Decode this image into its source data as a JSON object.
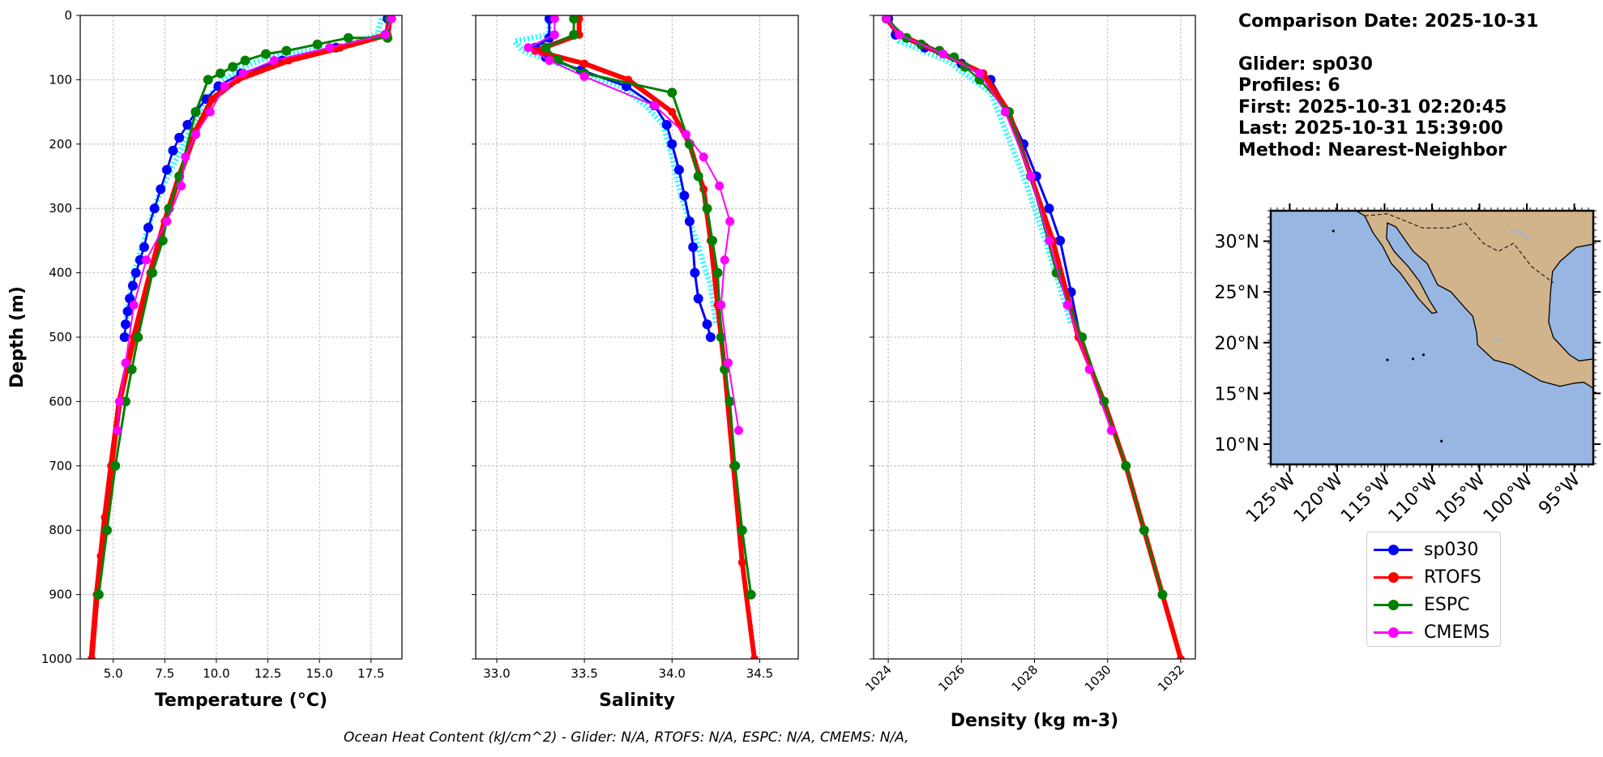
{
  "chart_data": [
    {
      "type": "line",
      "title": "",
      "xlabel": "Temperature (°C)",
      "ylabel": "Depth (m)",
      "xlim": [
        3.4,
        19
      ],
      "ylim": [
        1000,
        0
      ],
      "y_inverted": true,
      "grid": true,
      "xticks": [
        "5.0",
        "7.5",
        "10.0",
        "12.5",
        "15.0",
        "17.5"
      ],
      "yticks": [
        "0",
        "100",
        "200",
        "300",
        "400",
        "500",
        "600",
        "700",
        "800",
        "900",
        "1000"
      ],
      "series": [
        {
          "name": "sp030 (individual profiles)",
          "color": "#00ffff",
          "x": [
            18.0,
            17.8,
            16.5,
            14.5,
            12.5,
            11.0,
            10.0,
            9.2,
            8.4,
            7.8,
            7.2,
            6.8,
            6.4,
            6.0,
            5.8,
            5.6
          ],
          "y": [
            5,
            30,
            45,
            55,
            65,
            85,
            110,
            150,
            200,
            240,
            280,
            320,
            360,
            400,
            440,
            480
          ]
        },
        {
          "name": "sp030",
          "color": "#0000ff",
          "x": [
            18.3,
            18.2,
            15.8,
            13.2,
            11.2,
            10.1,
            9.5,
            9.0,
            8.6,
            8.2,
            7.9,
            7.6,
            7.3,
            7.0,
            6.7,
            6.5,
            6.3,
            6.1,
            5.95,
            5.8,
            5.7,
            5.6,
            5.55
          ],
          "y": [
            5,
            30,
            50,
            70,
            90,
            110,
            130,
            150,
            170,
            190,
            210,
            240,
            270,
            300,
            330,
            360,
            380,
            400,
            420,
            440,
            460,
            480,
            500
          ]
        },
        {
          "name": "RTOFS",
          "color": "#ff0000",
          "x": [
            18.4,
            18.3,
            16.0,
            13.5,
            11.0,
            9.8,
            9.0,
            8.2,
            7.5,
            6.8,
            6.0,
            5.3,
            4.9,
            4.6,
            4.4,
            4.2,
            3.95
          ],
          "y": [
            5,
            30,
            50,
            70,
            100,
            130,
            180,
            250,
            320,
            400,
            500,
            600,
            700,
            780,
            840,
            900,
            1000
          ]
        },
        {
          "name": "ESPC",
          "color": "#008000",
          "x": [
            18.4,
            18.3,
            16.4,
            14.9,
            13.4,
            12.4,
            11.4,
            10.8,
            10.2,
            9.6,
            9.0,
            8.2,
            7.7,
            7.4,
            6.9,
            6.2,
            5.9,
            5.6,
            5.1,
            4.7,
            4.3
          ],
          "y": [
            5,
            35,
            35,
            45,
            55,
            60,
            70,
            80,
            90,
            100,
            150,
            250,
            300,
            350,
            400,
            500,
            550,
            600,
            700,
            800,
            900
          ]
        },
        {
          "name": "CMEMS",
          "color": "#ff00ff",
          "x": [
            18.5,
            18.2,
            15.5,
            12.8,
            11.3,
            10.4,
            9.7,
            9.0,
            8.5,
            8.3,
            7.6,
            6.6,
            6.0,
            5.6,
            5.3,
            5.2
          ],
          "y": [
            5,
            30,
            50,
            70,
            90,
            110,
            150,
            185,
            220,
            265,
            320,
            380,
            450,
            540,
            600,
            645
          ]
        }
      ]
    },
    {
      "type": "line",
      "title": "",
      "xlabel": "Salinity",
      "ylabel": "",
      "xlim": [
        32.88,
        34.72
      ],
      "ylim": [
        1000,
        0
      ],
      "y_inverted": true,
      "grid": true,
      "xticks": [
        "33.0",
        "33.5",
        "34.0",
        "34.5"
      ],
      "series": [
        {
          "name": "sp030 (individual profiles)",
          "color": "#00ffff",
          "x": [
            33.3,
            33.3,
            33.1,
            33.15,
            33.3,
            33.5,
            33.7,
            33.85,
            33.95,
            34.0,
            34.05,
            34.1,
            34.15,
            34.22,
            34.25
          ],
          "y": [
            5,
            30,
            40,
            55,
            70,
            90,
            110,
            140,
            170,
            220,
            280,
            320,
            360,
            420,
            480
          ]
        },
        {
          "name": "sp030",
          "color": "#0000ff",
          "x": [
            33.3,
            33.3,
            33.22,
            33.28,
            33.48,
            33.74,
            33.9,
            33.97,
            34.0,
            34.04,
            34.07,
            34.1,
            34.12,
            34.13,
            34.15,
            34.2,
            34.22
          ],
          "y": [
            5,
            35,
            50,
            65,
            85,
            110,
            140,
            170,
            200,
            240,
            280,
            320,
            360,
            400,
            440,
            480,
            500
          ]
        },
        {
          "name": "RTOFS",
          "color": "#ff0000",
          "x": [
            33.47,
            33.47,
            33.22,
            33.5,
            33.75,
            34.0,
            34.1,
            34.18,
            34.22,
            34.26,
            34.3,
            34.35,
            34.4,
            34.47
          ],
          "y": [
            5,
            30,
            55,
            75,
            100,
            150,
            200,
            270,
            350,
            450,
            550,
            700,
            850,
            1000
          ]
        },
        {
          "name": "ESPC",
          "color": "#008000",
          "x": [
            33.44,
            33.44,
            33.28,
            33.35,
            33.5,
            34.0,
            34.1,
            34.15,
            34.2,
            34.23,
            34.26,
            34.28,
            34.3,
            34.33,
            34.36,
            34.4,
            34.45
          ],
          "y": [
            5,
            30,
            50,
            70,
            90,
            120,
            200,
            250,
            300,
            350,
            400,
            500,
            550,
            600,
            700,
            800,
            900
          ]
        },
        {
          "name": "CMEMS",
          "color": "#ff00ff",
          "x": [
            33.33,
            33.33,
            33.18,
            33.3,
            33.5,
            33.9,
            34.08,
            34.18,
            34.27,
            34.33,
            34.3,
            34.28,
            34.32,
            34.38
          ],
          "y": [
            5,
            30,
            50,
            70,
            95,
            140,
            185,
            220,
            265,
            320,
            380,
            450,
            540,
            645
          ]
        }
      ]
    },
    {
      "type": "line",
      "title": "",
      "xlabel": "Density (kg m-3)",
      "ylabel": "",
      "xlim": [
        1023.6,
        1032.4
      ],
      "ylim": [
        1000,
        0
      ],
      "y_inverted": true,
      "grid": true,
      "xticks": [
        "1024",
        "1026",
        "1028",
        "1030",
        "1032"
      ],
      "series": [
        {
          "name": "sp030 (individual profiles)",
          "color": "#00ffff",
          "x": [
            1024.0,
            1024.3,
            1025.6,
            1026.8,
            1027.7,
            1028.3,
            1029.0
          ],
          "y": [
            5,
            40,
            70,
            120,
            250,
            350,
            480
          ]
        },
        {
          "name": "sp030",
          "color": "#0000ff",
          "x": [
            1024.0,
            1024.2,
            1025.0,
            1026.0,
            1026.8,
            1027.3,
            1027.7,
            1028.05,
            1028.4,
            1028.7,
            1029.0,
            1029.25
          ],
          "y": [
            5,
            30,
            50,
            75,
            100,
            150,
            200,
            250,
            300,
            350,
            430,
            500
          ]
        },
        {
          "name": "RTOFS",
          "color": "#ff0000",
          "x": [
            1023.95,
            1024.3,
            1025.5,
            1026.6,
            1027.3,
            1027.9,
            1028.5,
            1029.2,
            1029.9,
            1030.5,
            1031.0,
            1031.5,
            1032.0
          ],
          "y": [
            5,
            30,
            60,
            90,
            150,
            250,
            350,
            500,
            600,
            700,
            800,
            900,
            1000
          ]
        },
        {
          "name": "ESPC",
          "color": "#008000",
          "x": [
            1023.95,
            1024.5,
            1024.9,
            1025.4,
            1025.8,
            1026.1,
            1026.5,
            1027.3,
            1027.9,
            1028.6,
            1029.3,
            1029.9,
            1030.5,
            1031.0,
            1031.5
          ],
          "y": [
            5,
            35,
            45,
            55,
            65,
            80,
            100,
            150,
            250,
            400,
            500,
            600,
            700,
            800,
            900
          ]
        },
        {
          "name": "CMEMS",
          "color": "#ff00ff",
          "x": [
            1023.95,
            1024.3,
            1025.5,
            1026.5,
            1027.2,
            1027.9,
            1028.4,
            1028.9,
            1029.5,
            1030.1
          ],
          "y": [
            5,
            30,
            60,
            90,
            150,
            250,
            350,
            450,
            550,
            645
          ]
        }
      ]
    }
  ],
  "info": {
    "comparison_date": "Comparison Date: 2025-10-31",
    "glider": "Glider: sp030",
    "profiles": "Profiles: 6",
    "first": "First: 2025-10-31 02:20:45",
    "last": "Last: 2025-10-31 15:39:00",
    "method": "Method: Nearest-Neighbor"
  },
  "map": {
    "lon_range": [
      -127,
      -93
    ],
    "lat_range": [
      8,
      33
    ],
    "lat_ticks": [
      "30°N",
      "25°N",
      "20°N",
      "15°N",
      "10°N"
    ],
    "lon_ticks": [
      "125°W",
      "120°W",
      "115°W",
      "110°W",
      "105°W",
      "100°W",
      "95°W"
    ],
    "ocean_color": "#97b6e1",
    "land_color": "#d2b48c"
  },
  "legend": [
    {
      "label": "sp030",
      "color": "#0000ff"
    },
    {
      "label": "RTOFS",
      "color": "#ff0000"
    },
    {
      "label": "ESPC",
      "color": "#008000"
    },
    {
      "label": "CMEMS",
      "color": "#ff00ff"
    }
  ],
  "footer": "Ocean Heat Content (kJ/cm^2) - Glider: N/A,  RTOFS: N/A,  ESPC: N/A,  CMEMS: N/A,"
}
